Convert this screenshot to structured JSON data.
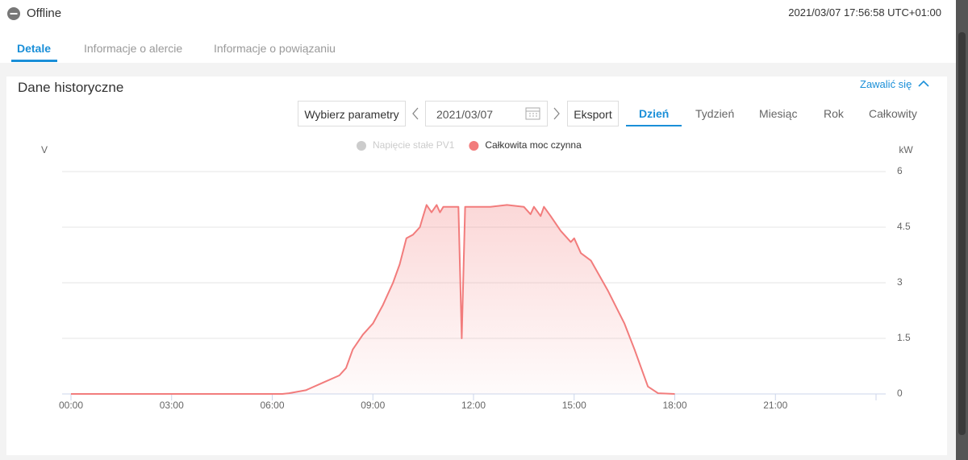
{
  "header": {
    "status": "Offline",
    "timestamp": "2021/03/07 17:56:58 UTC+01:00"
  },
  "tabs": [
    "Detale",
    "Informacje o alercie",
    "Informacje o powiązaniu"
  ],
  "panel": {
    "title": "Dane historyczne",
    "collapse": "Zawalić się"
  },
  "toolbar": {
    "parameters": "Wybierz parametry",
    "date": "2021/03/07",
    "export": "Eksport",
    "periods": [
      "Dzień",
      "Tydzień",
      "Miesiąc",
      "Rok",
      "Całkowity"
    ]
  },
  "chart_data": {
    "type": "line",
    "y_label": "V",
    "y2_label": "kW",
    "legend": "top",
    "grid": true,
    "x": [
      0,
      6.3,
      6.5,
      7,
      7.5,
      8,
      8.2,
      8.4,
      8.7,
      9,
      9.3,
      9.6,
      9.8,
      10,
      10.2,
      10.4,
      10.5,
      10.6,
      10.75,
      10.9,
      11,
      11.1,
      11.55,
      11.65,
      11.75,
      12,
      12.5,
      13,
      13.5,
      13.7,
      13.8,
      14,
      14.1,
      14.3,
      14.6,
      14.9,
      15,
      15.2,
      15.5,
      16,
      16.5,
      16.8,
      17,
      17.2,
      17.5,
      18
    ],
    "xlim": [
      0,
      24
    ],
    "xticks": [
      {
        "value": 0,
        "label": "00:00"
      },
      {
        "value": 3,
        "label": "03:00"
      },
      {
        "value": 6,
        "label": "06:00"
      },
      {
        "value": 9,
        "label": "09:00"
      },
      {
        "value": 12,
        "label": "12:00"
      },
      {
        "value": 15,
        "label": "15:00"
      },
      {
        "value": 18,
        "label": "18:00"
      },
      {
        "value": 21,
        "label": "21:00"
      }
    ],
    "y2lim": [
      0,
      6
    ],
    "y2ticks": [
      0,
      1.5,
      3,
      4.5,
      6
    ],
    "series": [
      {
        "name": "Napięcie stałe PV1",
        "visible": false,
        "values": [
          null,
          null,
          null,
          null,
          null,
          null,
          null,
          null,
          null,
          null,
          null,
          null,
          null,
          null,
          null,
          null,
          null,
          null,
          null,
          null,
          null,
          null,
          null,
          null,
          null,
          null,
          null,
          null,
          null,
          null,
          null,
          null,
          null,
          null,
          null,
          null,
          null,
          null,
          null,
          null,
          null,
          null,
          null,
          null,
          null,
          null
        ]
      },
      {
        "name": "Całkowita moc czynna",
        "color": "#f27c7c",
        "axis": "y2",
        "visible": true,
        "values": [
          0,
          0,
          0.02,
          0.1,
          0.3,
          0.5,
          0.7,
          1.2,
          1.6,
          1.9,
          2.4,
          3.0,
          3.5,
          4.2,
          4.3,
          4.5,
          4.8,
          5.1,
          4.9,
          5.1,
          4.9,
          5.05,
          5.05,
          1.5,
          5.05,
          5.05,
          5.05,
          5.1,
          5.05,
          4.85,
          5.05,
          4.8,
          5.05,
          4.8,
          4.4,
          4.1,
          4.2,
          3.8,
          3.6,
          2.8,
          1.9,
          1.2,
          0.7,
          0.2,
          0.02,
          0
        ]
      }
    ]
  }
}
